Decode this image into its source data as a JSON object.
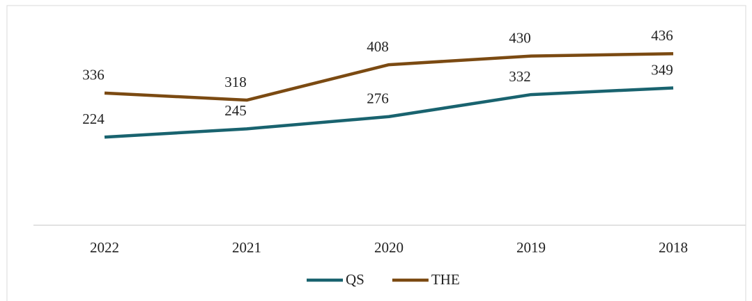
{
  "chart_data": {
    "type": "line",
    "categories": [
      "2022",
      "2021",
      "2020",
      "2019",
      "2018"
    ],
    "series": [
      {
        "name": "QS",
        "color": "#19636f",
        "values": [
          224,
          245,
          276,
          332,
          349
        ]
      },
      {
        "name": "THE",
        "color": "#7b4a12",
        "values": [
          336,
          318,
          408,
          430,
          436
        ]
      }
    ],
    "legend": "bottom"
  }
}
